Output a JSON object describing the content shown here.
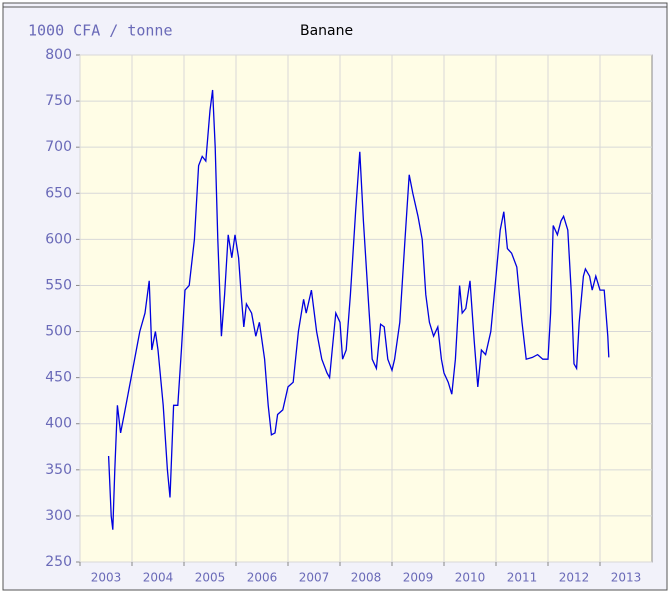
{
  "chart_data": {
    "type": "line",
    "y_label": "1000 CFA / tonne",
    "title": "Banane",
    "xlim": [
      2003,
      2014
    ],
    "ylim": [
      250,
      800
    ],
    "yticks": [
      250,
      300,
      350,
      400,
      450,
      500,
      550,
      600,
      650,
      700,
      750,
      800
    ],
    "xticks": [
      {
        "value": 2003,
        "label": "2003"
      },
      {
        "value": 2004,
        "label": "2004"
      },
      {
        "value": 2005,
        "label": "2005"
      },
      {
        "value": 2006,
        "label": "2006"
      },
      {
        "value": 2007,
        "label": "2007"
      },
      {
        "value": 2008,
        "label": "2008"
      },
      {
        "value": 2009,
        "label": "2009"
      },
      {
        "value": 2010,
        "label": "2010"
      },
      {
        "value": 2011,
        "label": "2011"
      },
      {
        "value": 2012,
        "label": "2012"
      },
      {
        "value": 2013,
        "label": "2013"
      }
    ],
    "grid": true,
    "x": [
      2003.55,
      2003.6,
      2003.63,
      2003.67,
      2003.72,
      2003.78,
      2003.85,
      2003.95,
      2004.05,
      2004.15,
      2004.25,
      2004.33,
      2004.38,
      2004.45,
      2004.5,
      2004.6,
      2004.68,
      2004.73,
      2004.8,
      2004.88,
      2004.95,
      2005.02,
      2005.1,
      2005.2,
      2005.28,
      2005.35,
      2005.42,
      2005.5,
      2005.55,
      2005.6,
      2005.65,
      2005.72,
      2005.78,
      2005.85,
      2005.92,
      2005.98,
      2006.05,
      2006.1,
      2006.15,
      2006.2,
      2006.3,
      2006.38,
      2006.45,
      2006.55,
      2006.62,
      2006.68,
      2006.75,
      2006.8,
      2006.9,
      2007.0,
      2007.1,
      2007.2,
      2007.3,
      2007.35,
      2007.45,
      2007.55,
      2007.65,
      2007.75,
      2007.8,
      2007.85,
      2007.92,
      2008.0,
      2008.05,
      2008.12,
      2008.2,
      2008.3,
      2008.38,
      2008.45,
      2008.55,
      2008.62,
      2008.7,
      2008.78,
      2008.85,
      2008.92,
      2009.0,
      2009.05,
      2009.15,
      2009.25,
      2009.33,
      2009.4,
      2009.5,
      2009.58,
      2009.65,
      2009.72,
      2009.8,
      2009.88,
      2009.95,
      2010.0,
      2010.08,
      2010.15,
      2010.22,
      2010.3,
      2010.35,
      2010.42,
      2010.5,
      2010.58,
      2010.65,
      2010.72,
      2010.8,
      2010.9,
      2011.0,
      2011.08,
      2011.15,
      2011.22,
      2011.3,
      2011.4,
      2011.5,
      2011.58,
      2011.7,
      2011.8,
      2011.9,
      2012.0,
      2012.05,
      2012.1,
      2012.18,
      2012.25,
      2012.3,
      2012.38,
      2012.45,
      2012.5,
      2012.55,
      2012.6,
      2012.68,
      2012.72,
      2012.8,
      2012.85,
      2012.92,
      2013.0,
      2013.08,
      2013.15,
      2013.17
    ],
    "series": [
      {
        "color": "#0000e0",
        "values": [
          365,
          300,
          285,
          350,
          420,
          390,
          410,
          440,
          470,
          500,
          520,
          555,
          480,
          500,
          480,
          420,
          350,
          320,
          420,
          420,
          480,
          545,
          550,
          600,
          680,
          690,
          685,
          740,
          762,
          700,
          600,
          495,
          540,
          605,
          580,
          605,
          580,
          540,
          505,
          530,
          520,
          495,
          510,
          470,
          420,
          388,
          390,
          410,
          415,
          440,
          445,
          500,
          535,
          520,
          545,
          500,
          470,
          455,
          450,
          480,
          520,
          510,
          470,
          480,
          540,
          630,
          695,
          620,
          530,
          470,
          460,
          508,
          505,
          470,
          458,
          470,
          510,
          600,
          670,
          650,
          625,
          600,
          540,
          510,
          495,
          505,
          470,
          455,
          445,
          432,
          470,
          550,
          520,
          525,
          555,
          490,
          440,
          480,
          475,
          500,
          560,
          610,
          630,
          590,
          585,
          570,
          510,
          470,
          472,
          475,
          470,
          470,
          520,
          615,
          605,
          620,
          625,
          610,
          540,
          465,
          460,
          510,
          560,
          568,
          560,
          545,
          560,
          545,
          545,
          495,
          472
        ]
      }
    ]
  }
}
